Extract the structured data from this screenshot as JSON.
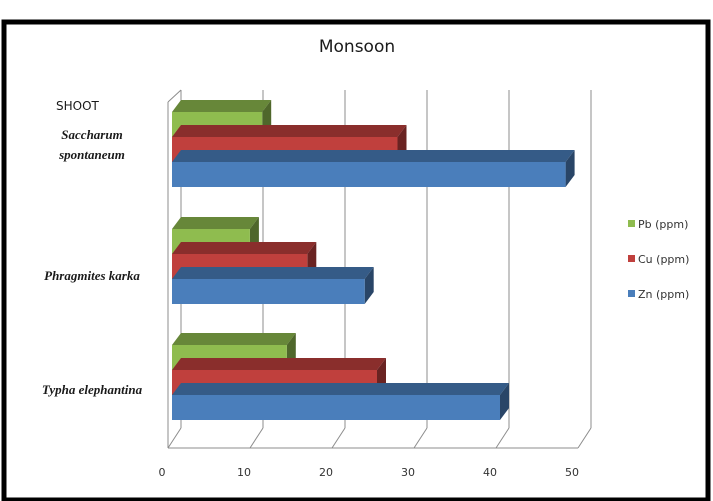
{
  "chart_data": {
    "type": "bar",
    "orientation": "horizontal",
    "three_d": true,
    "title": "Monsoon",
    "section_label": "SHOOT",
    "categories": [
      "Saccharum spontaneum",
      "Phragmites karka",
      "Typha elephantina"
    ],
    "category_lines": [
      [
        "Saccharum",
        "spontaneum"
      ],
      [
        "Phragmites karka"
      ],
      [
        "Typha elephantina"
      ]
    ],
    "series": [
      {
        "name": "Pb (ppm)",
        "color": "#8fbc4f",
        "values": [
          11,
          9.5,
          14
        ]
      },
      {
        "name": "Cu (ppm)",
        "color": "#c0403d",
        "values": [
          27.5,
          16.5,
          25
        ]
      },
      {
        "name": "Zn (ppm)",
        "color": "#4a7ebb",
        "values": [
          48,
          23.5,
          40
        ]
      }
    ],
    "xlim": [
      0,
      50
    ],
    "xticks": [
      "0",
      "10",
      "20",
      "30",
      "40",
      "50"
    ],
    "grid": true,
    "legend_position": "right"
  }
}
